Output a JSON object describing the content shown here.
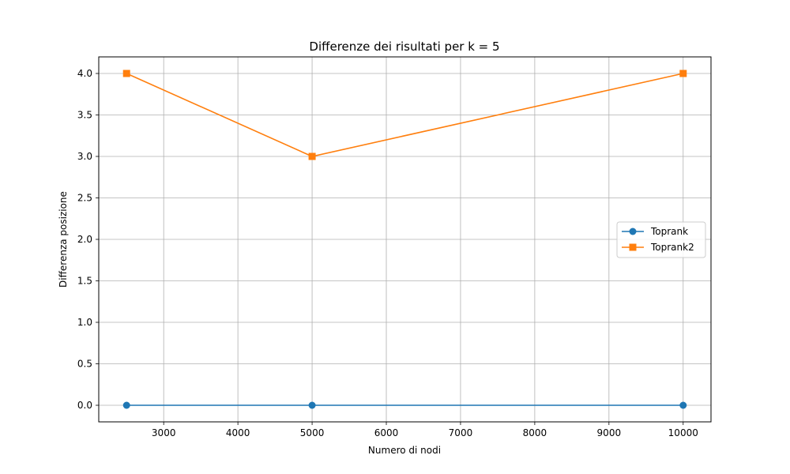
{
  "chart_data": {
    "type": "line",
    "title": "Differenze dei risultati per k = 5",
    "xlabel": "Numero di nodi",
    "ylabel": "Differenza posizione",
    "x": [
      2500,
      5000,
      10000
    ],
    "xlim": [
      2125,
      10375
    ],
    "ylim": [
      -0.2,
      4.2
    ],
    "xticks": [
      3000,
      4000,
      5000,
      6000,
      7000,
      8000,
      9000,
      10000
    ],
    "yticks": [
      0.0,
      0.5,
      1.0,
      1.5,
      2.0,
      2.5,
      3.0,
      3.5,
      4.0
    ],
    "grid": true,
    "legend_position": "center-right",
    "series": [
      {
        "name": "Toprank",
        "values": [
          0,
          0,
          0
        ],
        "color": "#1f77b4",
        "marker": "circle"
      },
      {
        "name": "Toprank2",
        "values": [
          4,
          3,
          4
        ],
        "color": "#ff7f0e",
        "marker": "square"
      }
    ]
  }
}
